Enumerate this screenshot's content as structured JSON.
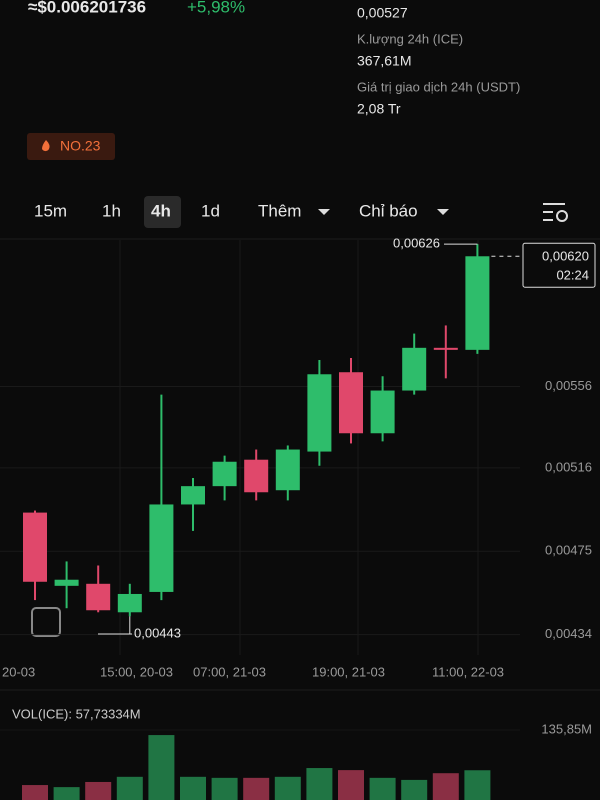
{
  "header": {
    "price": "≈$0.006201736",
    "change": "+5,98%",
    "low_value": "0,00527",
    "volume_label": "K.lượng 24h (ICE)",
    "volume_value": "367,61M",
    "turnover_label": "Giá trị giao dịch 24h (USDT)",
    "turnover_value": "2,08 Tr",
    "rank": "NO.23"
  },
  "tabs": [
    "15m",
    "1h",
    "4h",
    "1d",
    "Thêm",
    "Chỉ báo"
  ],
  "chart_data": {
    "type": "candlestick",
    "open": [
      0.00494,
      0.00458,
      0.00459,
      0.00445,
      0.00455,
      0.00498,
      0.00507,
      0.0052,
      0.00505,
      0.00524,
      0.00563,
      0.00533,
      0.00554,
      0.00575,
      0.00574
    ],
    "high": [
      0.00495,
      0.0047,
      0.00468,
      0.00459,
      0.00552,
      0.00511,
      0.00522,
      0.00525,
      0.00527,
      0.00569,
      0.0057,
      0.00561,
      0.00582,
      0.00586,
      0.00626
    ],
    "low": [
      0.00451,
      0.00447,
      0.00445,
      0.00443,
      0.00451,
      0.00485,
      0.005,
      0.005,
      0.005,
      0.00517,
      0.00528,
      0.00529,
      0.00552,
      0.0056,
      0.00572
    ],
    "close": [
      0.0046,
      0.00461,
      0.00446,
      0.00454,
      0.00498,
      0.00507,
      0.00519,
      0.00504,
      0.00525,
      0.00562,
      0.00533,
      0.00554,
      0.00575,
      0.00574,
      0.0062
    ],
    "up_color": "#2ebd6b",
    "down_color": "#e0486b",
    "ylim": [
      0.00424,
      0.00628
    ],
    "yticks": [
      {
        "value": 0.00434,
        "label": "0,00434"
      },
      {
        "value": 0.00475,
        "label": "0,00475"
      },
      {
        "value": 0.00516,
        "label": "0,00516"
      },
      {
        "value": 0.00556,
        "label": "0,00556"
      }
    ],
    "xtick_labels": [
      "20-03",
      "15:00, 20-03",
      "07:00, 21-03",
      "19:00, 21-03",
      "11:00, 22-03"
    ],
    "grid": true,
    "high_label": "0,00626",
    "low_label": "0,00443",
    "current_price": "0,00620",
    "countdown": "02:24",
    "volume": {
      "label": "VOL(ICE): 57,73334M",
      "values": [
        29,
        25,
        35,
        45,
        126,
        45,
        43,
        43,
        45,
        62,
        58,
        43,
        39,
        52,
        57.73334
      ],
      "ylim": [
        0,
        135.85
      ],
      "yticks": [
        {
          "value": 135.85,
          "label": "135,85M"
        }
      ]
    }
  }
}
